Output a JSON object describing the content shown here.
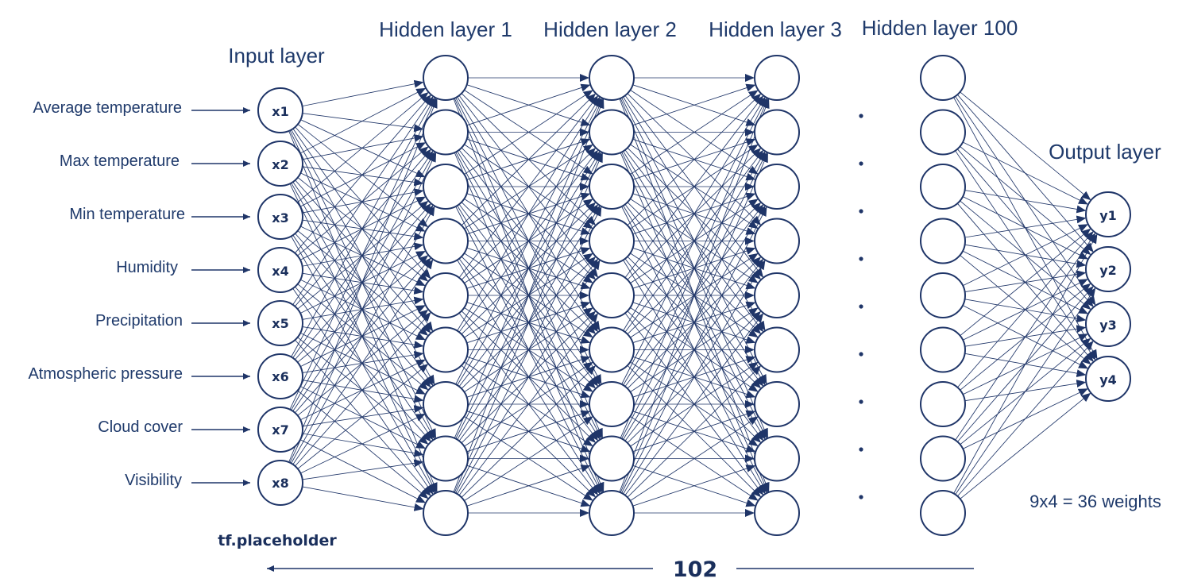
{
  "layers": {
    "input_title": "Input layer",
    "hidden_titles": [
      "Hidden layer 1",
      "Hidden layer 2",
      "Hidden layer 3",
      "Hidden layer 100"
    ],
    "output_title": "Output layer"
  },
  "inputs": [
    {
      "feature": "Average temperature",
      "node": "x1"
    },
    {
      "feature": "Max temperature",
      "node": "x2"
    },
    {
      "feature": "Min temperature",
      "node": "x3"
    },
    {
      "feature": "Humidity",
      "node": "x4"
    },
    {
      "feature": "Precipitation",
      "node": "x5"
    },
    {
      "feature": "Atmospheric pressure",
      "node": "x6"
    },
    {
      "feature": "Cloud cover",
      "node": "x7"
    },
    {
      "feature": "Visibility",
      "node": "x8"
    }
  ],
  "outputs": [
    "y1",
    "y2",
    "y3",
    "y4"
  ],
  "hidden_node_count": 9,
  "weights_note": "9x4 = 36 weights",
  "placeholder_label": "tf.placeholder",
  "layer_count_label": "102",
  "colors": {
    "ink": "#1f3568",
    "text": "#1f3a6b",
    "background": "#ffffff"
  }
}
